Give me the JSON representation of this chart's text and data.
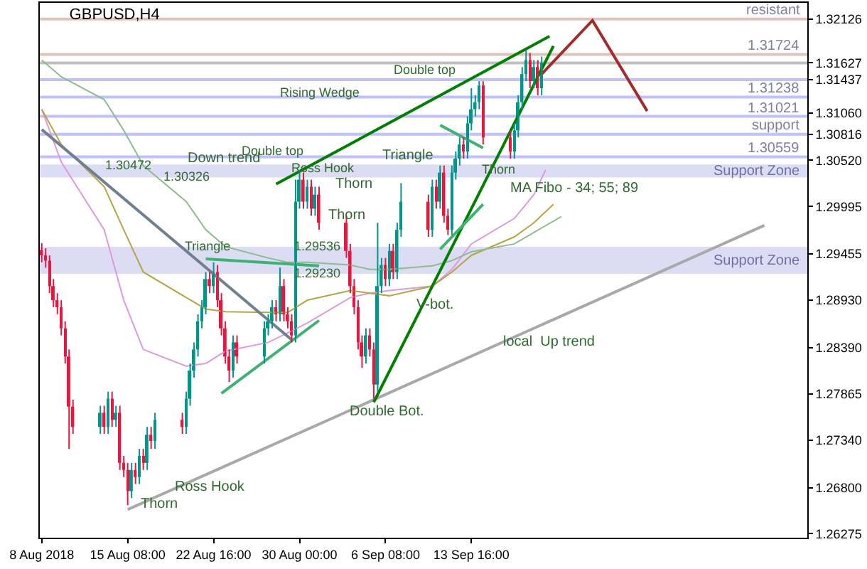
{
  "chart_data": {
    "type": "candlestick",
    "title": "GBPUSD,H4",
    "x": [
      "2018-08-08T00:00",
      "2018-08-08T08:00",
      "2018-08-08T16:00",
      "2018-08-09T00:00",
      "2018-08-09T08:00",
      "2018-08-09T16:00",
      "2018-08-10T00:00",
      "2018-08-10T08:00",
      "2018-08-10T16:00",
      "2018-08-13T00:00",
      "2018-08-13T08:00",
      "2018-08-13T16:00",
      "2018-08-14T00:00",
      "2018-08-14T08:00",
      "2018-08-14T16:00",
      "2018-08-15T00:00",
      "2018-08-15T08:00",
      "2018-08-15T16:00",
      "2018-08-16T00:00",
      "2018-08-16T08:00",
      "2018-08-16T16:00",
      "2018-08-17T00:00",
      "2018-08-17T08:00",
      "2018-08-17T16:00",
      "2018-08-20T00:00",
      "2018-08-20T08:00",
      "2018-08-20T16:00",
      "2018-08-21T00:00",
      "2018-08-21T08:00",
      "2018-08-21T16:00",
      "2018-08-22T00:00",
      "2018-08-22T08:00",
      "2018-08-22T16:00",
      "2018-08-23T00:00",
      "2018-08-23T08:00",
      "2018-08-23T16:00",
      "2018-08-24T00:00",
      "2018-08-24T08:00",
      "2018-08-24T16:00",
      "2018-08-27T00:00",
      "2018-08-27T08:00",
      "2018-08-27T16:00",
      "2018-08-28T00:00",
      "2018-08-28T08:00",
      "2018-08-28T16:00",
      "2018-08-29T00:00",
      "2018-08-29T08:00",
      "2018-08-29T16:00",
      "2018-08-30T00:00",
      "2018-08-30T08:00",
      "2018-08-30T16:00",
      "2018-08-31T00:00",
      "2018-08-31T08:00",
      "2018-08-31T16:00",
      "2018-09-03T00:00",
      "2018-09-03T08:00",
      "2018-09-03T16:00",
      "2018-09-04T00:00",
      "2018-09-04T08:00",
      "2018-09-04T16:00",
      "2018-09-05T00:00",
      "2018-09-05T08:00",
      "2018-09-05T16:00",
      "2018-09-06T00:00",
      "2018-09-06T08:00",
      "2018-09-06T16:00",
      "2018-09-07T00:00",
      "2018-09-07T08:00",
      "2018-09-07T16:00",
      "2018-09-10T00:00",
      "2018-09-10T08:00",
      "2018-09-10T16:00",
      "2018-09-11T00:00",
      "2018-09-11T08:00",
      "2018-09-11T16:00",
      "2018-09-12T00:00",
      "2018-09-12T08:00",
      "2018-09-12T16:00",
      "2018-09-13T00:00",
      "2018-09-13T08:00",
      "2018-09-13T16:00",
      "2018-09-14T00:00",
      "2018-09-14T08:00",
      "2018-09-14T16:00",
      "2018-09-17T00:00",
      "2018-09-17T08:00",
      "2018-09-17T16:00",
      "2018-09-18T00:00",
      "2018-09-18T08:00",
      "2018-09-18T16:00",
      "2018-09-19T00:00",
      "2018-09-19T08:00",
      "2018-09-19T16:00"
    ],
    "ohlc": [
      [
        1.295,
        1.2958,
        1.2936,
        1.2944
      ],
      [
        1.2944,
        1.2952,
        1.293,
        1.2938
      ],
      [
        1.2938,
        1.2944,
        1.2901,
        1.2909
      ],
      [
        1.2909,
        1.2917,
        1.2885,
        1.2893
      ],
      [
        1.2893,
        1.2901,
        1.2877,
        1.2885
      ],
      [
        1.2885,
        1.2893,
        1.2853,
        1.2861
      ],
      [
        1.2861,
        1.2869,
        1.2821,
        1.2829
      ],
      [
        1.2829,
        1.2837,
        1.2724,
        1.2772
      ],
      [
        1.2772,
        1.278,
        1.2741,
        1.2749
      ],
      [
        1.2749,
        1.2773,
        1.2741,
        1.2765
      ],
      [
        1.2765,
        1.2773,
        1.2741,
        1.2749
      ],
      [
        1.2749,
        1.2789,
        1.2741,
        1.2781
      ],
      [
        1.2781,
        1.2789,
        1.2749,
        1.2757
      ],
      [
        1.2757,
        1.2773,
        1.2749,
        1.2765
      ],
      [
        1.2765,
        1.2773,
        1.27,
        1.2708
      ],
      [
        1.2708,
        1.2716,
        1.2692,
        1.27
      ],
      [
        1.27,
        1.2708,
        1.266,
        1.2676
      ],
      [
        1.2676,
        1.2708,
        1.2668,
        1.27
      ],
      [
        1.27,
        1.2708,
        1.2684,
        1.2692
      ],
      [
        1.2692,
        1.2724,
        1.2684,
        1.2716
      ],
      [
        1.2716,
        1.2724,
        1.27,
        1.2708
      ],
      [
        1.2708,
        1.2749,
        1.27,
        1.274
      ],
      [
        1.274,
        1.2749,
        1.2724,
        1.2733
      ],
      [
        1.2733,
        1.2765,
        1.2724,
        1.2757
      ],
      [
        1.2757,
        1.2765,
        1.2741,
        1.2749
      ],
      [
        1.2749,
        1.2789,
        1.2741,
        1.2781
      ],
      [
        1.2781,
        1.2821,
        1.2773,
        1.2813
      ],
      [
        1.2813,
        1.2845,
        1.2805,
        1.2837
      ],
      [
        1.2837,
        1.2877,
        1.2829,
        1.2869
      ],
      [
        1.2869,
        1.2893,
        1.2861,
        1.2885
      ],
      [
        1.2885,
        1.2925,
        1.2877,
        1.2917
      ],
      [
        1.2917,
        1.2925,
        1.2901,
        1.2909
      ],
      [
        1.2909,
        1.2936,
        1.2901,
        1.2925
      ],
      [
        1.2925,
        1.2933,
        1.2885,
        1.2893
      ],
      [
        1.2893,
        1.2901,
        1.2853,
        1.2861
      ],
      [
        1.2861,
        1.2869,
        1.2821,
        1.2829
      ],
      [
        1.2829,
        1.2837,
        1.28,
        1.2813
      ],
      [
        1.2813,
        1.2853,
        1.2805,
        1.2845
      ],
      [
        1.2845,
        1.2853,
        1.2821,
        1.2829
      ],
      [
        1.2829,
        1.2869,
        1.2821,
        1.2861
      ],
      [
        1.2861,
        1.2877,
        1.2853,
        1.2869
      ],
      [
        1.2869,
        1.2893,
        1.2861,
        1.2885
      ],
      [
        1.2885,
        1.2893,
        1.2869,
        1.2877
      ],
      [
        1.2877,
        1.293,
        1.2869,
        1.2909
      ],
      [
        1.2909,
        1.2917,
        1.2869,
        1.2877
      ],
      [
        1.2877,
        1.2885,
        1.2861,
        1.2869
      ],
      [
        1.2869,
        1.2877,
        1.2845,
        1.2853
      ],
      [
        1.2853,
        1.303,
        1.2845,
        1.3005
      ],
      [
        1.3005,
        1.3041,
        1.2997,
        1.303
      ],
      [
        1.303,
        1.3038,
        1.2997,
        1.3005
      ],
      [
        1.3005,
        1.303,
        1.2997,
        1.3022
      ],
      [
        1.3022,
        1.303,
        1.2989,
        1.2997
      ],
      [
        1.2997,
        1.3022,
        1.2989,
        1.3013
      ],
      [
        1.3013,
        1.3022,
        1.2973,
        1.2981
      ],
      [
        1.2981,
        1.2989,
        1.2941,
        1.2949
      ],
      [
        1.2949,
        1.2957,
        1.2901,
        1.2909
      ],
      [
        1.2909,
        1.2917,
        1.2877,
        1.2885
      ],
      [
        1.2885,
        1.2893,
        1.2837,
        1.2845
      ],
      [
        1.2845,
        1.2853,
        1.2816,
        1.2829
      ],
      [
        1.2829,
        1.2861,
        1.2821,
        1.2853
      ],
      [
        1.2853,
        1.2861,
        1.2829,
        1.2837
      ],
      [
        1.2837,
        1.2845,
        1.2781,
        1.2797
      ],
      [
        1.2797,
        1.2981,
        1.2789,
        1.2909
      ],
      [
        1.2909,
        1.2941,
        1.2901,
        1.2933
      ],
      [
        1.2933,
        1.2941,
        1.2909,
        1.2917
      ],
      [
        1.2917,
        1.2957,
        1.2909,
        1.2949
      ],
      [
        1.2949,
        1.2957,
        1.2917,
        1.2925
      ],
      [
        1.2925,
        1.2981,
        1.2917,
        1.2973
      ],
      [
        1.2973,
        1.3026,
        1.2965,
        1.3005
      ],
      [
        1.3005,
        1.3013,
        1.2965,
        1.2973
      ],
      [
        1.2973,
        1.303,
        1.2965,
        1.3022
      ],
      [
        1.3022,
        1.303,
        1.2997,
        1.3005
      ],
      [
        1.3005,
        1.3046,
        1.2997,
        1.3038
      ],
      [
        1.3038,
        1.3046,
        1.2981,
        1.2989
      ],
      [
        1.2989,
        1.2997,
        1.2967,
        1.2973
      ],
      [
        1.2973,
        1.3046,
        1.2967,
        1.3038
      ],
      [
        1.3038,
        1.3062,
        1.303,
        1.3054
      ],
      [
        1.3054,
        1.3078,
        1.3046,
        1.307
      ],
      [
        1.307,
        1.3078,
        1.3054,
        1.3062
      ],
      [
        1.3062,
        1.3102,
        1.3054,
        1.3094
      ],
      [
        1.3094,
        1.3134,
        1.3086,
        1.311
      ],
      [
        1.311,
        1.3126,
        1.3102,
        1.3118
      ],
      [
        1.3118,
        1.3142,
        1.311,
        1.3137
      ],
      [
        1.3137,
        1.3142,
        1.307,
        1.3078
      ],
      [
        1.3078,
        1.3086,
        1.3054,
        1.3062
      ],
      [
        1.3062,
        1.3094,
        1.3054,
        1.3086
      ],
      [
        1.3086,
        1.3126,
        1.3078,
        1.3118
      ],
      [
        1.3118,
        1.3158,
        1.311,
        1.315
      ],
      [
        1.315,
        1.3177,
        1.3142,
        1.3166
      ],
      [
        1.3166,
        1.3174,
        1.3134,
        1.3142
      ],
      [
        1.3142,
        1.3166,
        1.3134,
        1.3158
      ],
      [
        1.3158,
        1.3166,
        1.3126,
        1.3134
      ],
      [
        1.3134,
        1.317,
        1.3126,
        1.3163
      ]
    ],
    "colors": [
      "#e8173f",
      "#e8173f",
      "#e8173f",
      "#e8173f",
      "#e8173f",
      "#e8173f",
      "#e8173f",
      "#e8173f",
      "#e8173f",
      "#00968a",
      "#e8173f",
      "#00968a",
      "#e8173f",
      "#00968a",
      "#e8173f",
      "#e8173f",
      "#e8173f",
      "#00968a",
      "#e8173f",
      "#00968a",
      "#e8173f",
      "#00968a",
      "#e8173f",
      "#00968a",
      "#e8173f",
      "#00968a",
      "#00968a",
      "#00968a",
      "#00968a",
      "#00968a",
      "#00968a",
      "#e8173f",
      "#00968a",
      "#e8173f",
      "#e8173f",
      "#e8173f",
      "#e8173f",
      "#00968a",
      "#e8173f",
      "#00968a",
      "#00968a",
      "#00968a",
      "#e8173f",
      "#00968a",
      "#e8173f",
      "#e8173f",
      "#e8173f",
      "#00968a",
      "#00968a",
      "#e8173f",
      "#00968a",
      "#e8173f",
      "#00968a",
      "#e8173f",
      "#e8173f",
      "#e8173f",
      "#e8173f",
      "#e8173f",
      "#e8173f",
      "#00968a",
      "#e8173f",
      "#e8173f",
      "#00968a",
      "#00968a",
      "#e8173f",
      "#00968a",
      "#e8173f",
      "#00968a",
      "#00968a",
      "#e8173f",
      "#00968a",
      "#e8173f",
      "#00968a",
      "#e8173f",
      "#e8173f",
      "#00968a",
      "#00968a",
      "#00968a",
      "#e8173f",
      "#00968a",
      "#00968a",
      "#00968a",
      "#00968a",
      "#e8173f",
      "#e8173f",
      "#00968a",
      "#00968a",
      "#00968a",
      "#00968a",
      "#e8173f",
      "#00968a",
      "#e8173f",
      "#00968a"
    ],
    "series": [
      {
        "type": "line",
        "color": "#dd99dd",
        "x": [
          "2018-08-08T00:00",
          "2018-08-09T16:00",
          "2018-08-13T08:00",
          "2018-08-15T00:00",
          "2018-08-16T16:00",
          "2018-08-20T08:00",
          "2018-08-22T00:00",
          "2018-08-23T16:00",
          "2018-08-27T08:00",
          "2018-08-29T00:00",
          "2018-08-30T16:00",
          "2018-09-03T08:00",
          "2018-09-05T00:00",
          "2018-09-06T16:00",
          "2018-09-10T08:00",
          "2018-09-12T00:00",
          "2018-09-13T16:00",
          "2018-09-17T08:00",
          "2018-09-19T00:00",
          "2018-09-20T00:00"
        ],
        "values": [
          1.311,
          1.305,
          1.2973,
          1.2893,
          1.2837,
          1.2818,
          1.2821,
          1.2835,
          1.2845,
          1.2856,
          1.2867,
          1.2896,
          1.2901,
          1.2904,
          1.2909,
          1.2928,
          1.2957,
          1.2986,
          1.3013,
          1.3041
        ]
      },
      {
        "type": "line",
        "color": "#b5a642",
        "x": [
          "2018-08-08T00:00",
          "2018-08-09T16:00",
          "2018-08-13T08:00",
          "2018-08-15T00:00",
          "2018-08-16T16:00",
          "2018-08-20T08:00",
          "2018-08-22T00:00",
          "2018-08-23T16:00",
          "2018-08-27T08:00",
          "2018-08-29T00:00",
          "2018-08-30T16:00",
          "2018-09-03T08:00",
          "2018-09-05T00:00",
          "2018-09-06T16:00",
          "2018-09-10T08:00",
          "2018-09-12T00:00",
          "2018-09-13T16:00",
          "2018-09-17T08:00",
          "2018-09-19T00:00",
          "2018-09-20T16:00"
        ],
        "values": [
          1.311,
          1.307,
          1.3022,
          1.2973,
          1.2925,
          1.2896,
          1.2883,
          1.288,
          1.2879,
          1.2879,
          1.2893,
          1.2904,
          1.2901,
          1.2898,
          1.2909,
          1.2925,
          1.2944,
          1.2965,
          1.2981,
          1.3002
        ]
      },
      {
        "type": "line",
        "color": "#8fbc8f",
        "x": [
          "2018-08-08T00:00",
          "2018-08-09T16:00",
          "2018-08-13T08:00",
          "2018-08-15T00:00",
          "2018-08-16T16:00",
          "2018-08-20T08:00",
          "2018-08-22T00:00",
          "2018-08-23T16:00",
          "2018-08-27T08:00",
          "2018-08-29T00:00",
          "2018-08-30T16:00",
          "2018-09-03T08:00",
          "2018-09-05T00:00",
          "2018-09-06T16:00",
          "2018-09-10T08:00",
          "2018-09-12T00:00",
          "2018-09-13T16:00",
          "2018-09-17T08:00",
          "2018-09-19T00:00",
          "2018-09-21T08:00"
        ],
        "values": [
          1.3166,
          1.3147,
          1.3121,
          1.3086,
          1.3046,
          1.3005,
          1.2973,
          1.2954,
          1.2941,
          1.2936,
          1.2936,
          1.2933,
          1.2928,
          1.2928,
          1.2932,
          1.2938,
          1.2948,
          1.2957,
          1.297,
          1.2988
        ]
      },
      {
        "type": "line",
        "color": "#708090",
        "x": [
          "2018-08-08T00:00",
          "2018-08-29T08:00"
        ],
        "values": [
          1.3087,
          1.2848
        ]
      },
      {
        "type": "line",
        "color": "#a9a9a9",
        "x": [
          "2018-08-15T08:00",
          "2018-10-08T16:00"
        ],
        "values": [
          1.2655,
          1.2978
        ]
      },
      {
        "type": "line",
        "color": "#3cb371",
        "x": [
          "2018-08-22T00:00",
          "2018-08-31T16:00"
        ],
        "values": [
          1.294,
          1.2932
        ]
      },
      {
        "type": "line",
        "color": "#3cb371",
        "x": [
          "2018-08-23T08:00",
          "2018-08-31T16:00"
        ],
        "values": [
          1.2787,
          1.287
        ]
      },
      {
        "type": "line",
        "color": "#008000",
        "x": [
          "2018-08-28T00:00",
          "2018-09-20T08:00"
        ],
        "values": [
          1.3025,
          1.3193
        ]
      },
      {
        "type": "line",
        "color": "#008000",
        "x": [
          "2018-09-05T08:00",
          "2018-09-20T16:00"
        ],
        "values": [
          1.2777,
          1.3182
        ]
      },
      {
        "type": "line",
        "color": "#3cb371",
        "x": [
          "2018-09-11T00:00",
          "2018-09-14T16:00"
        ],
        "values": [
          1.3092,
          1.3066
        ]
      },
      {
        "type": "line",
        "color": "#3cb371",
        "x": [
          "2018-09-11T00:00",
          "2018-09-14T16:00"
        ],
        "values": [
          1.2951,
          1.3002
        ]
      },
      {
        "type": "line",
        "color": "#a52a2a",
        "x": [
          "2018-09-19T16:00",
          "2018-09-24T00:00",
          "2018-09-28T16:00"
        ],
        "values": [
          1.315,
          1.3211,
          1.3108
        ]
      }
    ],
    "ref_lines": [
      {
        "axis": "y",
        "value": 1.32126,
        "label": "resistant",
        "color": "#e0c4bc"
      },
      {
        "axis": "y",
        "value": 1.31724,
        "label": "1.31724",
        "color": "#e0c4bc"
      },
      {
        "axis": "y",
        "value": 1.31627,
        "color": "#c0c0c0"
      },
      {
        "axis": "y",
        "value": 1.31437,
        "color": "#c0c0ff"
      },
      {
        "axis": "y",
        "value": 1.31238,
        "label": "1.31238",
        "color": "#c0c0ff"
      },
      {
        "axis": "y",
        "value": 1.31021,
        "label": "1.31021",
        "color": "#c0c0ff"
      },
      {
        "axis": "y",
        "value": 1.30816,
        "label": "support",
        "color": "#c0c0ff"
      },
      {
        "axis": "y",
        "value": 1.30559,
        "label": "1.30559",
        "color": "#c0c0ff"
      }
    ],
    "bands": [
      {
        "axis": "y",
        "from": 1.30326,
        "to": 1.30472,
        "label": "Support Zone",
        "color": "#dcdcf5"
      },
      {
        "axis": "y",
        "from": 1.2923,
        "to": 1.29536,
        "label": "Support Zone",
        "color": "#dcdcf5"
      }
    ],
    "annotations": [
      "Down trend",
      {
        "text": "Triangle",
        "x": "2018-08-24T08:00",
        "y": 1.2954
      },
      {
        "text": "Double top",
        "x": "2018-08-30T16:00",
        "y": 1.3063
      },
      {
        "text": "Ross Hook",
        "x": "2018-09-04T00:00",
        "y": 1.3044
      },
      "Ross Hook",
      "Thorn",
      "Thorn",
      "Thorn",
      "Triangle",
      {
        "text": "Rising Wedge",
        "x": "2018-09-04T08:00",
        "y": 1.3129
      },
      {
        "text": "Double top",
        "x": "2018-09-12T16:00",
        "y": 1.3155
      },
      {
        "text": "Thorn",
        "x": "2018-09-17T16:00",
        "y": 1.3042
      },
      "V-bot.",
      "Double Bot.",
      "local  Up trend",
      "MA Fibo - 34; 55; 89",
      {
        "text": "1.30472",
        "x": "2018-08-17T16:00",
        "y": 1.3047
      },
      {
        "text": "1.30326",
        "x": "2018-08-22T16:00",
        "y": 1.3033
      },
      {
        "text": "1.29536",
        "x": "2018-09-02T20:00",
        "y": 1.2954
      },
      {
        "text": "1.29230",
        "x": "2018-09-02T20:00",
        "y": 1.2923
      }
    ],
    "xlim": [
      "2018-08-07T20:00",
      "2018-10-12T08:00"
    ],
    "xticks": [
      {
        "value": "2018-08-08T00:00",
        "label": "8 Aug 2018"
      },
      {
        "value": "2018-08-15T08:00",
        "label": "15 Aug 08:00"
      },
      {
        "value": "2018-08-22T16:00",
        "label": "22 Aug 16:00"
      },
      {
        "value": "2018-08-30T00:00",
        "label": "30 Aug 00:00"
      },
      {
        "value": "2018-09-06T08:00",
        "label": "6 Sep 08:00"
      },
      {
        "value": "2018-09-13T16:00",
        "label": "13 Sep 16:00"
      }
    ],
    "ylim": [
      1.2623,
      1.3231
    ],
    "yticks": [
      {
        "value": 1.26275,
        "label": "1.26275"
      },
      {
        "value": 1.268,
        "label": "1.26800"
      },
      {
        "value": 1.2734,
        "label": "1.27340"
      },
      {
        "value": 1.27865,
        "label": "1.27865"
      },
      {
        "value": 1.2839,
        "label": "1.28390"
      },
      {
        "value": 1.2893,
        "label": "1.28930"
      },
      {
        "value": 1.29455,
        "label": "1.29455"
      },
      {
        "value": 1.29995,
        "label": "1.29995"
      },
      {
        "value": 1.3052,
        "label": "1.30520"
      },
      {
        "value": 1.30816,
        "label": "1.30816"
      },
      {
        "value": 1.3106,
        "label": "1.31060"
      },
      {
        "value": 1.31437,
        "label": "1.31437"
      },
      {
        "value": 1.31627,
        "label": "1.31627"
      },
      {
        "value": 1.32126,
        "label": "1.32126"
      }
    ]
  }
}
